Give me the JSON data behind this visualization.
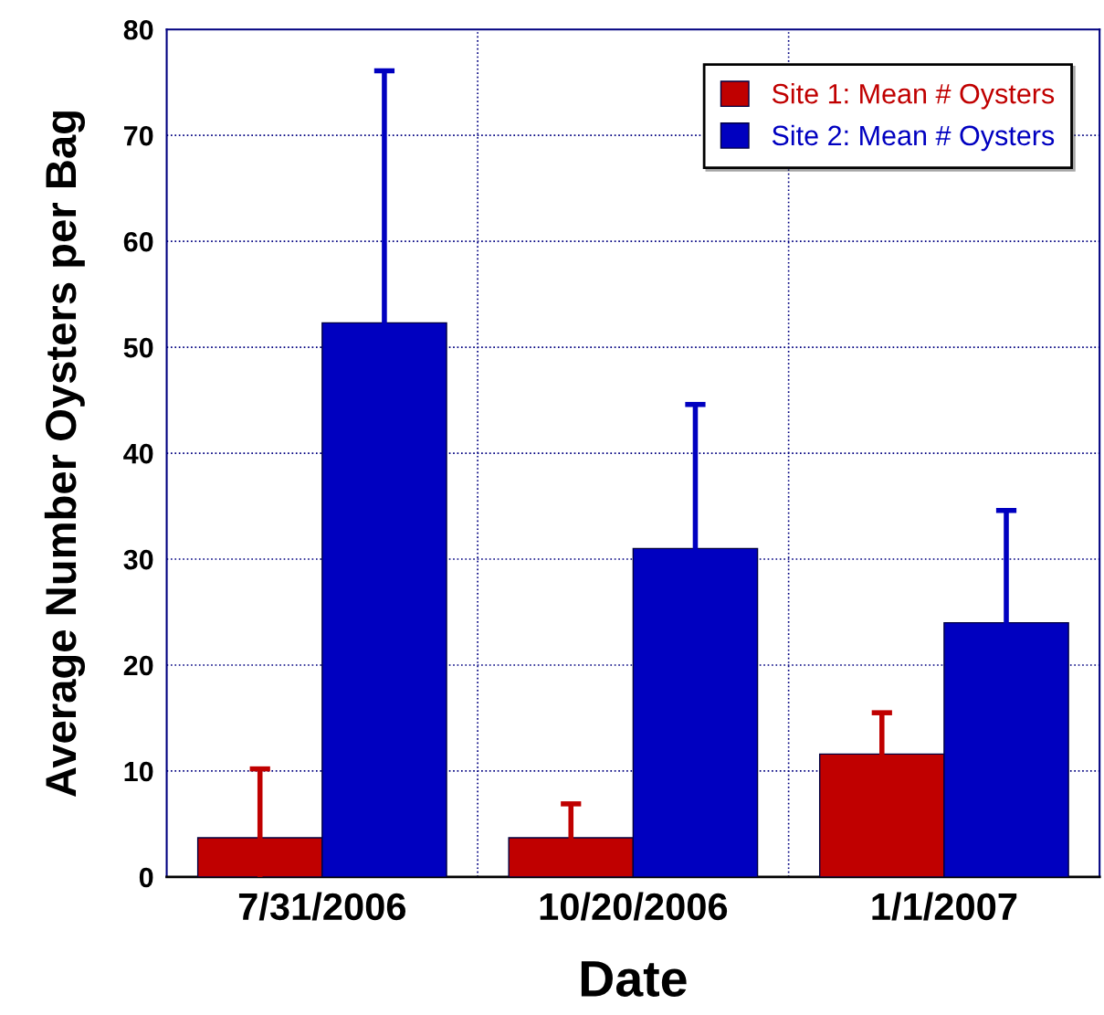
{
  "chart_data": {
    "type": "bar",
    "xlabel": "Date",
    "ylabel": "Average Number Oysters per Bag",
    "categories": [
      "7/31/2006",
      "10/20/2006",
      "1/1/2007"
    ],
    "series": [
      {
        "name": "Site 1: Mean # Oysters",
        "color": "#c00000",
        "values": [
          3.7,
          3.7,
          11.6
        ],
        "errors": [
          [
            0,
            10.2
          ],
          3.2,
          3.9
        ]
      },
      {
        "name": "Site 2: Mean # Oysters",
        "color": "#0000c0",
        "values": [
          52.3,
          31.0,
          24.0
        ],
        "errors": [
          23.8,
          13.6,
          10.6
        ]
      }
    ],
    "ylim": [
      0,
      80
    ],
    "yticks": [
      0,
      10,
      20,
      30,
      40,
      50,
      60,
      70,
      80
    ],
    "grid": true,
    "legend": "top right"
  }
}
